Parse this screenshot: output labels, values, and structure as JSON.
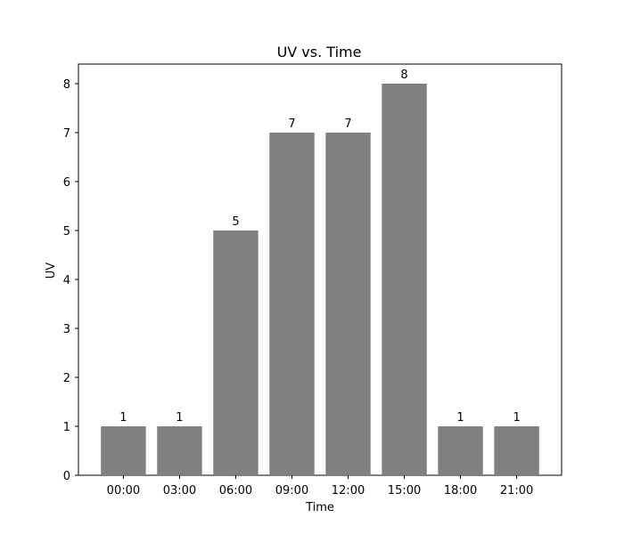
{
  "chart_data": {
    "type": "bar",
    "title": "UV vs. Time",
    "xlabel": "Time",
    "ylabel": "UV",
    "categories": [
      "00:00",
      "03:00",
      "06:00",
      "09:00",
      "12:00",
      "15:00",
      "18:00",
      "21:00"
    ],
    "values": [
      1,
      1,
      5,
      7,
      7,
      8,
      1,
      1
    ],
    "data_labels": [
      "1",
      "1",
      "5",
      "7",
      "7",
      "8",
      "1",
      "1"
    ],
    "y_ticks": [
      0,
      1,
      2,
      3,
      4,
      5,
      6,
      7,
      8
    ],
    "ylim": [
      0,
      8.4
    ],
    "grid": false,
    "legend": "none",
    "bar_color": "#808080"
  }
}
